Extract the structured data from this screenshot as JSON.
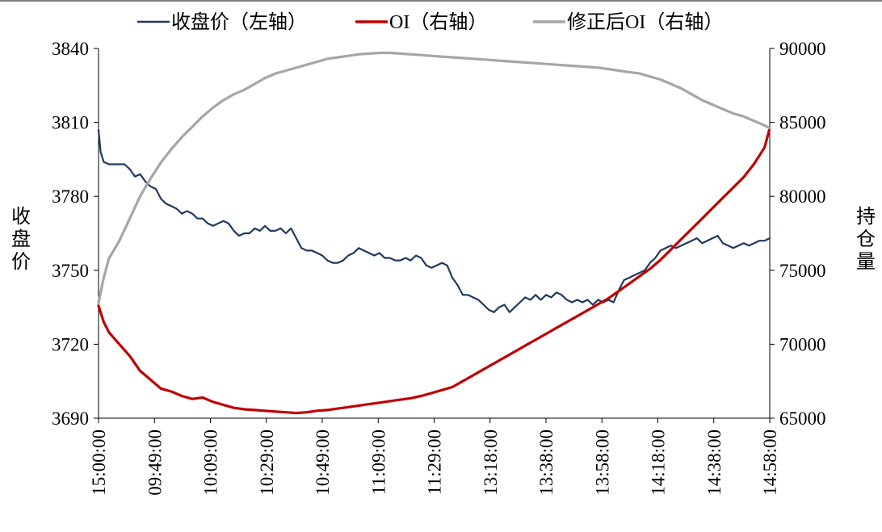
{
  "chart_data": {
    "type": "line",
    "x_ticks": [
      "15:00:00",
      "09:49:00",
      "10:09:00",
      "10:29:00",
      "10:49:00",
      "11:09:00",
      "11:29:00",
      "13:18:00",
      "13:38:00",
      "13:58:00",
      "14:18:00",
      "14:38:00",
      "14:58:00"
    ],
    "y_left": {
      "label": "收盘价",
      "ticks": [
        3690,
        3720,
        3750,
        3780,
        3810,
        3840
      ],
      "ylim": [
        3690,
        3840
      ]
    },
    "y_right": {
      "label": "持仓量",
      "ticks": [
        65000,
        70000,
        75000,
        80000,
        85000,
        90000
      ],
      "ylim": [
        65000,
        90000
      ]
    },
    "legend_position": "top",
    "grid": false,
    "series": [
      {
        "name": "收盘价（左轴）",
        "axis": "left",
        "color": "#1f3a5f",
        "points": [
          [
            0,
            3807
          ],
          [
            0.2,
            3798
          ],
          [
            0.5,
            3794
          ],
          [
            1,
            3793
          ],
          [
            1.8,
            3793
          ],
          [
            2.5,
            3793
          ],
          [
            3,
            3791
          ],
          [
            3.5,
            3788
          ],
          [
            4,
            3789
          ],
          [
            4.5,
            3786
          ],
          [
            5,
            3784
          ],
          [
            5.5,
            3783
          ],
          [
            6,
            3779
          ],
          [
            6.5,
            3777
          ],
          [
            7,
            3776
          ],
          [
            7.5,
            3775
          ],
          [
            8,
            3773
          ],
          [
            8.5,
            3774
          ],
          [
            9,
            3773
          ],
          [
            9.5,
            3771
          ],
          [
            10,
            3771
          ],
          [
            10.5,
            3769
          ],
          [
            11,
            3768
          ],
          [
            11.5,
            3769
          ],
          [
            12,
            3770
          ],
          [
            12.5,
            3769
          ],
          [
            13,
            3766
          ],
          [
            13.5,
            3764
          ],
          [
            14,
            3765
          ],
          [
            14.5,
            3765
          ],
          [
            15,
            3767
          ],
          [
            15.5,
            3766
          ],
          [
            16,
            3768
          ],
          [
            16.5,
            3766
          ],
          [
            17,
            3766
          ],
          [
            17.5,
            3767
          ],
          [
            18,
            3765
          ],
          [
            18.5,
            3767
          ],
          [
            19,
            3763
          ],
          [
            19.5,
            3759
          ],
          [
            20,
            3758
          ],
          [
            20.5,
            3758
          ],
          [
            21,
            3757
          ],
          [
            21.5,
            3756
          ],
          [
            22,
            3754
          ],
          [
            22.5,
            3753
          ],
          [
            23,
            3753
          ],
          [
            23.5,
            3754
          ],
          [
            24,
            3756
          ],
          [
            24.5,
            3757
          ],
          [
            25,
            3759
          ],
          [
            25.5,
            3758
          ],
          [
            26,
            3757
          ],
          [
            26.5,
            3756
          ],
          [
            27,
            3757
          ],
          [
            27.5,
            3755
          ],
          [
            28,
            3755
          ],
          [
            28.5,
            3754
          ],
          [
            29,
            3754
          ],
          [
            29.5,
            3755
          ],
          [
            30,
            3754
          ],
          [
            30.5,
            3756
          ],
          [
            31,
            3755
          ],
          [
            31.5,
            3752
          ],
          [
            32,
            3751
          ],
          [
            32.5,
            3752
          ],
          [
            33,
            3753
          ],
          [
            33.5,
            3752
          ],
          [
            34,
            3747
          ],
          [
            34.5,
            3744
          ],
          [
            35,
            3740
          ],
          [
            35.5,
            3740
          ],
          [
            36,
            3739
          ],
          [
            36.5,
            3738
          ],
          [
            37,
            3736
          ],
          [
            37.5,
            3734
          ],
          [
            38,
            3733
          ],
          [
            38.5,
            3735
          ],
          [
            39,
            3736
          ],
          [
            39.5,
            3733
          ],
          [
            40,
            3735
          ],
          [
            40.5,
            3737
          ],
          [
            41,
            3739
          ],
          [
            41.5,
            3738
          ],
          [
            42,
            3740
          ],
          [
            42.5,
            3738
          ],
          [
            43,
            3740
          ],
          [
            43.5,
            3739
          ],
          [
            44,
            3741
          ],
          [
            44.5,
            3740
          ],
          [
            45,
            3738
          ],
          [
            45.5,
            3737
          ],
          [
            46,
            3738
          ],
          [
            46.5,
            3737
          ],
          [
            47,
            3738
          ],
          [
            47.5,
            3736
          ],
          [
            48,
            3738
          ],
          [
            48.5,
            3737
          ],
          [
            49,
            3738
          ],
          [
            49.5,
            3737
          ],
          [
            50,
            3742
          ],
          [
            50.5,
            3746
          ],
          [
            51,
            3747
          ],
          [
            51.5,
            3748
          ],
          [
            52,
            3749
          ],
          [
            52.5,
            3750
          ],
          [
            53,
            3753
          ],
          [
            53.5,
            3755
          ],
          [
            54,
            3758
          ],
          [
            54.5,
            3759
          ],
          [
            55,
            3760
          ],
          [
            55.5,
            3759
          ],
          [
            56,
            3760
          ],
          [
            56.5,
            3761
          ],
          [
            57,
            3762
          ],
          [
            57.5,
            3763
          ],
          [
            58,
            3761
          ],
          [
            58.5,
            3762
          ],
          [
            59,
            3763
          ],
          [
            59.5,
            3764
          ],
          [
            60,
            3761
          ],
          [
            60.5,
            3760
          ],
          [
            61,
            3759
          ],
          [
            61.5,
            3760
          ],
          [
            62,
            3761
          ],
          [
            62.5,
            3760
          ],
          [
            63,
            3761
          ],
          [
            63.5,
            3762
          ],
          [
            64,
            3762
          ],
          [
            64.5,
            3763
          ]
        ]
      },
      {
        "name": "OI（右轴）",
        "axis": "right",
        "color": "#c00000",
        "points": [
          [
            0,
            72600
          ],
          [
            0.5,
            71500
          ],
          [
            1,
            70800
          ],
          [
            2,
            70000
          ],
          [
            3,
            69200
          ],
          [
            4,
            68200
          ],
          [
            5,
            67600
          ],
          [
            6,
            67000
          ],
          [
            7,
            66800
          ],
          [
            8,
            66500
          ],
          [
            9,
            66300
          ],
          [
            10,
            66400
          ],
          [
            11,
            66100
          ],
          [
            12,
            65900
          ],
          [
            13,
            65700
          ],
          [
            14,
            65600
          ],
          [
            15,
            65550
          ],
          [
            16,
            65500
          ],
          [
            17,
            65450
          ],
          [
            18,
            65400
          ],
          [
            19,
            65350
          ],
          [
            20,
            65400
          ],
          [
            21,
            65500
          ],
          [
            22,
            65550
          ],
          [
            23,
            65650
          ],
          [
            24,
            65750
          ],
          [
            25,
            65850
          ],
          [
            26,
            65950
          ],
          [
            27,
            66050
          ],
          [
            28,
            66150
          ],
          [
            29,
            66250
          ],
          [
            30,
            66350
          ],
          [
            31,
            66500
          ],
          [
            32,
            66700
          ],
          [
            33,
            66900
          ],
          [
            34,
            67100
          ],
          [
            35,
            67500
          ],
          [
            36,
            67900
          ],
          [
            37,
            68300
          ],
          [
            38,
            68700
          ],
          [
            39,
            69100
          ],
          [
            40,
            69500
          ],
          [
            41,
            69900
          ],
          [
            42,
            70300
          ],
          [
            43,
            70700
          ],
          [
            44,
            71100
          ],
          [
            45,
            71500
          ],
          [
            46,
            71900
          ],
          [
            47,
            72300
          ],
          [
            48,
            72700
          ],
          [
            49,
            73100
          ],
          [
            50,
            73600
          ],
          [
            51,
            74100
          ],
          [
            52,
            74600
          ],
          [
            53,
            75100
          ],
          [
            54,
            75700
          ],
          [
            55,
            76400
          ],
          [
            56,
            77100
          ],
          [
            57,
            77800
          ],
          [
            58,
            78500
          ],
          [
            59,
            79200
          ],
          [
            60,
            79900
          ],
          [
            61,
            80600
          ],
          [
            62,
            81300
          ],
          [
            63,
            82200
          ],
          [
            64,
            83300
          ],
          [
            64.5,
            84600
          ]
        ]
      },
      {
        "name": "修正后OI（右轴）",
        "axis": "right",
        "color": "#a6a6a6",
        "points": [
          [
            0,
            72800
          ],
          [
            0.5,
            74500
          ],
          [
            1,
            75800
          ],
          [
            2,
            77000
          ],
          [
            3,
            78500
          ],
          [
            4,
            80000
          ],
          [
            5,
            81200
          ],
          [
            6,
            82300
          ],
          [
            7,
            83200
          ],
          [
            8,
            84000
          ],
          [
            9,
            84700
          ],
          [
            10,
            85400
          ],
          [
            11,
            86000
          ],
          [
            12,
            86500
          ],
          [
            13,
            86900
          ],
          [
            14,
            87200
          ],
          [
            15,
            87600
          ],
          [
            16,
            88000
          ],
          [
            17,
            88300
          ],
          [
            18,
            88500
          ],
          [
            19,
            88700
          ],
          [
            20,
            88900
          ],
          [
            21,
            89100
          ],
          [
            22,
            89300
          ],
          [
            23,
            89400
          ],
          [
            24,
            89500
          ],
          [
            25,
            89600
          ],
          [
            26,
            89650
          ],
          [
            27,
            89700
          ],
          [
            28,
            89700
          ],
          [
            29,
            89650
          ],
          [
            30,
            89600
          ],
          [
            31,
            89550
          ],
          [
            32,
            89500
          ],
          [
            33,
            89450
          ],
          [
            34,
            89400
          ],
          [
            35,
            89350
          ],
          [
            36,
            89300
          ],
          [
            37,
            89250
          ],
          [
            38,
            89200
          ],
          [
            39,
            89150
          ],
          [
            40,
            89100
          ],
          [
            41,
            89050
          ],
          [
            42,
            89000
          ],
          [
            43,
            88950
          ],
          [
            44,
            88900
          ],
          [
            45,
            88850
          ],
          [
            46,
            88800
          ],
          [
            47,
            88750
          ],
          [
            48,
            88700
          ],
          [
            49,
            88600
          ],
          [
            50,
            88500
          ],
          [
            51,
            88400
          ],
          [
            52,
            88300
          ],
          [
            53,
            88100
          ],
          [
            54,
            87900
          ],
          [
            55,
            87600
          ],
          [
            56,
            87300
          ],
          [
            57,
            86900
          ],
          [
            58,
            86500
          ],
          [
            59,
            86200
          ],
          [
            60,
            85900
          ],
          [
            61,
            85600
          ],
          [
            62,
            85400
          ],
          [
            63,
            85100
          ],
          [
            64,
            84800
          ],
          [
            64.5,
            84600
          ]
        ]
      }
    ]
  }
}
